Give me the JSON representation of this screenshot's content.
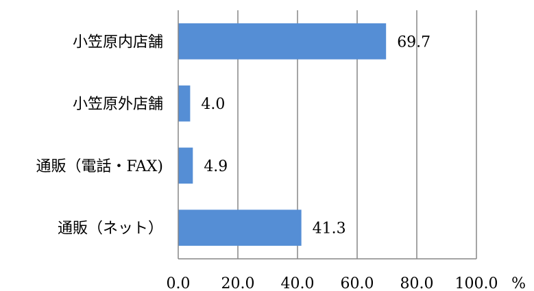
{
  "chart_data": {
    "type": "bar",
    "orientation": "horizontal",
    "categories": [
      "小笠原内店舗",
      "小笠原外店舗",
      "通販（電話・FAX)",
      "通販（ネット）"
    ],
    "values": [
      69.7,
      4.0,
      4.9,
      41.3
    ],
    "value_labels": [
      "69.7",
      "4.0",
      "4.9",
      "41.3"
    ],
    "xlim": [
      0,
      100
    ],
    "x_ticks": [
      0,
      20,
      40,
      60,
      80,
      100
    ],
    "x_tick_labels": [
      "0.0",
      "20.0",
      "40.0",
      "60.0",
      "80.0",
      "100.0"
    ],
    "unit": "%",
    "grid": "vertical",
    "bar_color": "#558ed5",
    "gridline_color": "#868686",
    "title": "",
    "xlabel": "",
    "ylabel": ""
  }
}
